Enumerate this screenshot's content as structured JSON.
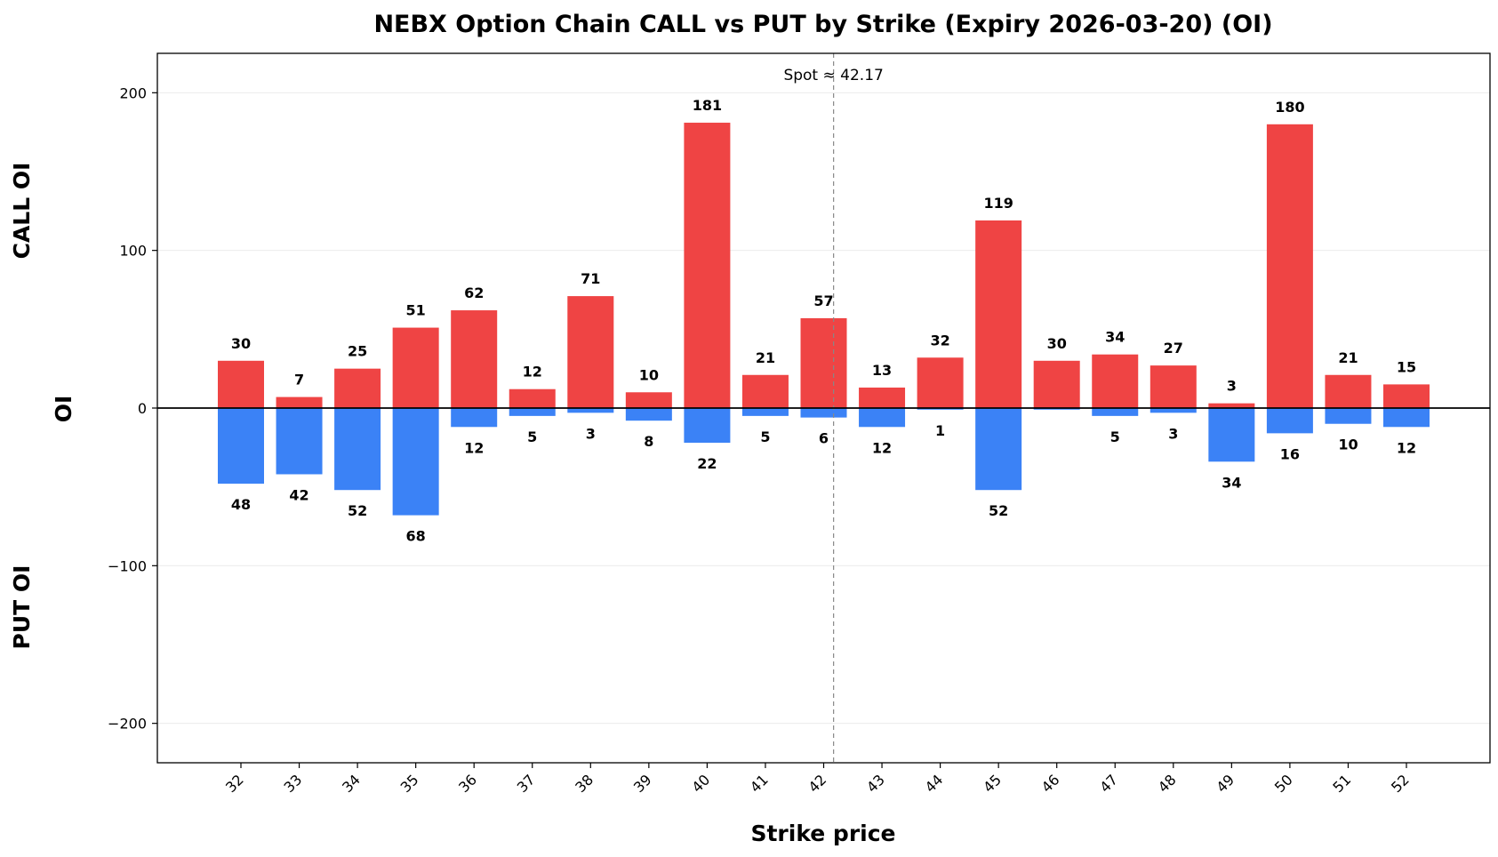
{
  "chart_data": {
    "type": "bar",
    "title": "NEBX Option Chain CALL vs PUT by Strike (Expiry 2026-03-20) (OI)",
    "xlabel": "Strike price",
    "ylabel": "OI",
    "ylabel_top": "CALL OI",
    "ylabel_bottom": "PUT OI",
    "ylim": [
      -225,
      225
    ],
    "yticks": [
      -200,
      -100,
      0,
      100,
      200
    ],
    "grid": true,
    "categories": [
      "32",
      "33",
      "34",
      "35",
      "36",
      "37",
      "38",
      "39",
      "40",
      "41",
      "42",
      "43",
      "44",
      "45",
      "46",
      "47",
      "48",
      "49",
      "50",
      "51",
      "52"
    ],
    "series": [
      {
        "key": "call",
        "color": "#ef4444",
        "values": [
          30,
          7,
          25,
          51,
          62,
          12,
          71,
          10,
          181,
          21,
          57,
          13,
          32,
          119,
          30,
          34,
          27,
          3,
          180,
          21,
          15
        ],
        "labels": [
          "30",
          "7",
          "25",
          "51",
          "62",
          "12",
          "71",
          "10",
          "181",
          "21",
          "57",
          "13",
          "32",
          "119",
          "30",
          "34",
          "27",
          "3",
          "180",
          "21",
          "15"
        ]
      },
      {
        "key": "put",
        "color": "#3b82f6",
        "values": [
          -48,
          -42,
          -52,
          -68,
          -12,
          -5,
          -3,
          -8,
          -22,
          -5,
          -6,
          -12,
          -1,
          -52,
          -1,
          -5,
          -3,
          -34,
          -16,
          -10,
          -12
        ],
        "labels": [
          "48",
          "42",
          "52",
          "68",
          "12",
          "5",
          "3",
          "8",
          "22",
          "5",
          "6",
          "12",
          "1",
          "52",
          "",
          "5",
          "3",
          "34",
          "16",
          "10",
          "12"
        ]
      }
    ],
    "annotations": [
      {
        "type": "vline",
        "x": 42.17,
        "label": "Spot ≈ 42.17"
      }
    ]
  }
}
